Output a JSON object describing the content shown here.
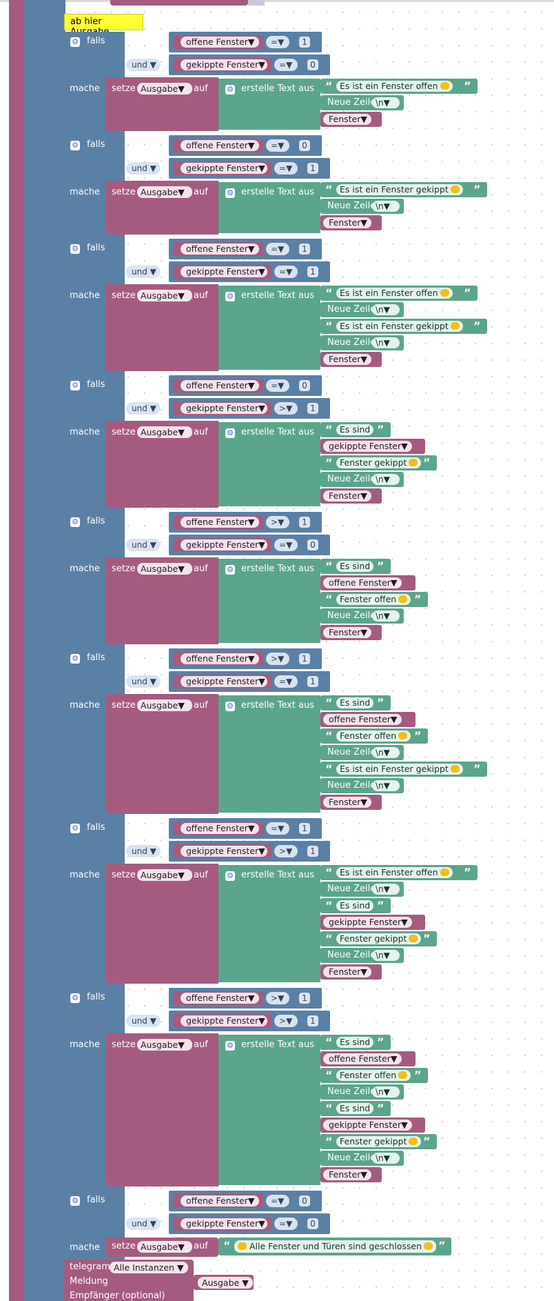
{
  "comment_label": "ab hier Ausgabe",
  "keywords": {
    "falls": "falls",
    "und": "und",
    "mache": "mache",
    "setze": "setze",
    "auf": "auf",
    "erstelle": "erstelle Text aus",
    "ausgabe": "Ausgabe",
    "dropdown_arrow": "▼"
  },
  "blocks": [
    {
      "cond1": {
        "var": "offene Fenster",
        "op": "=",
        "num": "1"
      },
      "cond2": {
        "var": "gekippte Fenster",
        "op": "=",
        "num": "0"
      },
      "items": [
        {
          "type": "text",
          "label": "Es ist ein Fenster offen",
          "emoji": true
        },
        {
          "type": "newline",
          "label": "Neue Zeile",
          "value": "\\n"
        },
        {
          "type": "var",
          "label": "Fenster"
        }
      ]
    },
    {
      "cond1": {
        "var": "offene Fenster",
        "op": "=",
        "num": "0"
      },
      "cond2": {
        "var": "gekippte Fenster",
        "op": "=",
        "num": "1"
      },
      "items": [
        {
          "type": "text",
          "label": "Es ist ein Fenster gekippt",
          "emoji": true
        },
        {
          "type": "newline",
          "label": "Neue Zeile",
          "value": "\\n"
        },
        {
          "type": "var",
          "label": "Fenster"
        }
      ]
    },
    {
      "cond1": {
        "var": "offene Fenster",
        "op": "=",
        "num": "1"
      },
      "cond2": {
        "var": "gekippte Fenster",
        "op": "=",
        "num": "1"
      },
      "items": [
        {
          "type": "text",
          "label": "Es ist ein Fenster offen",
          "emoji": true
        },
        {
          "type": "newline",
          "label": "Neue Zeile",
          "value": "\\n"
        },
        {
          "type": "text",
          "label": "Es ist ein Fenster gekippt",
          "emoji": true
        },
        {
          "type": "newline",
          "label": "Neue Zeile",
          "value": "\\n"
        },
        {
          "type": "var",
          "label": "Fenster"
        }
      ]
    },
    {
      "cond1": {
        "var": "offene Fenster",
        "op": "=",
        "num": "0"
      },
      "cond2": {
        "var": "gekippte Fenster",
        "op": ">",
        "num": "1"
      },
      "items": [
        {
          "type": "text",
          "label": "Es sind",
          "emoji": false
        },
        {
          "type": "var",
          "label": "gekippte Fenster"
        },
        {
          "type": "text",
          "label": "Fenster gekippt",
          "emoji": true
        },
        {
          "type": "newline",
          "label": "Neue Zeile",
          "value": "\\n"
        },
        {
          "type": "var",
          "label": "Fenster"
        }
      ]
    },
    {
      "cond1": {
        "var": "offene Fenster",
        "op": ">",
        "num": "1"
      },
      "cond2": {
        "var": "gekippte Fenster",
        "op": "=",
        "num": "0"
      },
      "items": [
        {
          "type": "text",
          "label": "Es sind",
          "emoji": false
        },
        {
          "type": "var",
          "label": "offene Fenster"
        },
        {
          "type": "text",
          "label": "Fenster offen",
          "emoji": true
        },
        {
          "type": "newline",
          "label": "Neue Zeile",
          "value": "\\n"
        },
        {
          "type": "var",
          "label": "Fenster"
        }
      ]
    },
    {
      "cond1": {
        "var": "offene Fenster",
        "op": ">",
        "num": "1"
      },
      "cond2": {
        "var": "gekippte Fenster",
        "op": "=",
        "num": "1"
      },
      "items": [
        {
          "type": "text",
          "label": "Es sind",
          "emoji": false
        },
        {
          "type": "var",
          "label": "offene Fenster"
        },
        {
          "type": "text",
          "label": "Fenster offen",
          "emoji": true
        },
        {
          "type": "newline",
          "label": "Neue Zeile",
          "value": "\\n"
        },
        {
          "type": "text",
          "label": "Es ist ein Fenster gekippt",
          "emoji": true
        },
        {
          "type": "newline",
          "label": "Neue Zeile",
          "value": "\\n"
        },
        {
          "type": "var",
          "label": "Fenster"
        }
      ]
    },
    {
      "cond1": {
        "var": "offene Fenster",
        "op": "=",
        "num": "1"
      },
      "cond2": {
        "var": "gekippte Fenster",
        "op": ">",
        "num": "1"
      },
      "items": [
        {
          "type": "text",
          "label": "Es ist ein Fenster offen",
          "emoji": true
        },
        {
          "type": "newline",
          "label": "Neue Zeile",
          "value": "\\n"
        },
        {
          "type": "text",
          "label": "Es sind",
          "emoji": false
        },
        {
          "type": "var",
          "label": "gekippte Fenster"
        },
        {
          "type": "text",
          "label": "Fenster gekippt",
          "emoji": true
        },
        {
          "type": "newline",
          "label": "Neue Zeile",
          "value": "\\n"
        },
        {
          "type": "var",
          "label": "Fenster"
        }
      ]
    },
    {
      "cond1": {
        "var": "offene Fenster",
        "op": ">",
        "num": "1"
      },
      "cond2": {
        "var": "gekippte Fenster",
        "op": ">",
        "num": "1"
      },
      "items": [
        {
          "type": "text",
          "label": "Es sind",
          "emoji": false
        },
        {
          "type": "var",
          "label": "offene Fenster"
        },
        {
          "type": "text",
          "label": "Fenster offen",
          "emoji": true
        },
        {
          "type": "newline",
          "label": "Neue Zeile",
          "value": "\\n"
        },
        {
          "type": "text",
          "label": "Es sind",
          "emoji": false
        },
        {
          "type": "var",
          "label": "gekippte Fenster"
        },
        {
          "type": "text",
          "label": "Fenster gekippt",
          "emoji": true
        },
        {
          "type": "newline",
          "label": "Neue Zeile",
          "value": "\\n"
        },
        {
          "type": "var",
          "label": "Fenster"
        }
      ]
    }
  ],
  "final_block": {
    "cond1": {
      "var": "offene Fenster",
      "op": "=",
      "num": "0"
    },
    "cond2": {
      "var": "gekippte Fenster",
      "op": "=",
      "num": "0"
    },
    "text": "Alle Fenster und Türen sind geschlossen"
  },
  "telegram": {
    "label": "telegram",
    "instance": "Alle Instanzen",
    "meldung": "Meldung",
    "meldung_value": "Ausgabe",
    "empfaenger": "Empfänger (optional)"
  }
}
